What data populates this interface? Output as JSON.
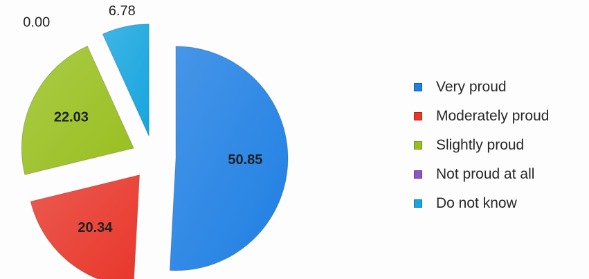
{
  "chart_data": {
    "type": "pie",
    "title": "",
    "exploded": true,
    "label_decimals": 2,
    "slices": [
      {
        "label": "Very proud",
        "value": 50.85,
        "color": "#1f7fe3"
      },
      {
        "label": "Moderately proud",
        "value": 20.34,
        "color": "#e8362a"
      },
      {
        "label": "Slightly proud",
        "value": 22.03,
        "color": "#98bf1f"
      },
      {
        "label": "Not proud at all",
        "value": 0.0,
        "color": "#8a55c4"
      },
      {
        "label": "Do not know",
        "value": 6.78,
        "color": "#16a5df"
      }
    ],
    "legend_position": "right"
  }
}
